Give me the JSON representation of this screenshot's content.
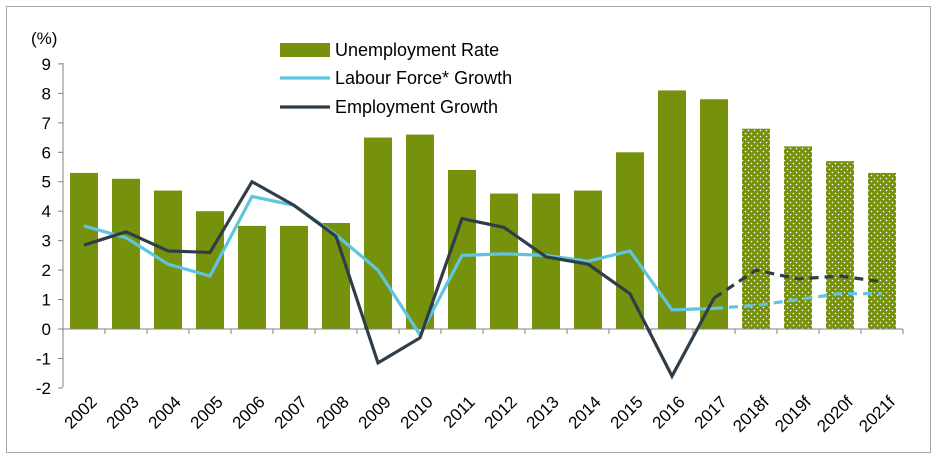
{
  "chart_data": {
    "type": "bar",
    "title": "",
    "ylabel": "(%)",
    "xlabel": "",
    "ylim": [
      -2,
      9
    ],
    "yticks": [
      9,
      8,
      7,
      6,
      5,
      4,
      3,
      2,
      1,
      0,
      -1,
      -2
    ],
    "categories": [
      "2002",
      "2003",
      "2004",
      "2005",
      "2006",
      "2007",
      "2008",
      "2009",
      "2010",
      "2011",
      "2012",
      "2013",
      "2014",
      "2015",
      "2016",
      "2017",
      "2018f",
      "2019f",
      "2020f",
      "2021f"
    ],
    "forecast_from_index": 16,
    "legend_position": "top-center",
    "series": [
      {
        "name": "Unemployment Rate",
        "type": "bar",
        "color": "#76920c",
        "values": [
          5.3,
          5.1,
          4.7,
          4.0,
          3.5,
          3.5,
          3.6,
          6.5,
          6.6,
          5.4,
          4.6,
          4.6,
          4.7,
          6.0,
          8.1,
          7.8,
          6.8,
          6.2,
          5.7,
          5.3
        ]
      },
      {
        "name": "Labour Force* Growth",
        "type": "line",
        "color": "#5fc4e0",
        "values": [
          3.5,
          3.1,
          2.2,
          1.8,
          4.5,
          4.2,
          3.2,
          2.0,
          -0.2,
          2.5,
          2.55,
          2.5,
          2.3,
          2.65,
          0.65,
          0.7,
          0.8,
          1.0,
          1.2,
          1.2
        ]
      },
      {
        "name": "Employment Growth",
        "type": "line",
        "color": "#2f3d48",
        "values": [
          2.85,
          3.3,
          2.65,
          2.6,
          5.0,
          4.2,
          3.15,
          -1.15,
          -0.3,
          3.75,
          3.45,
          2.45,
          2.2,
          1.2,
          -1.6,
          1.05,
          2.0,
          1.7,
          1.8,
          1.6
        ]
      }
    ]
  }
}
